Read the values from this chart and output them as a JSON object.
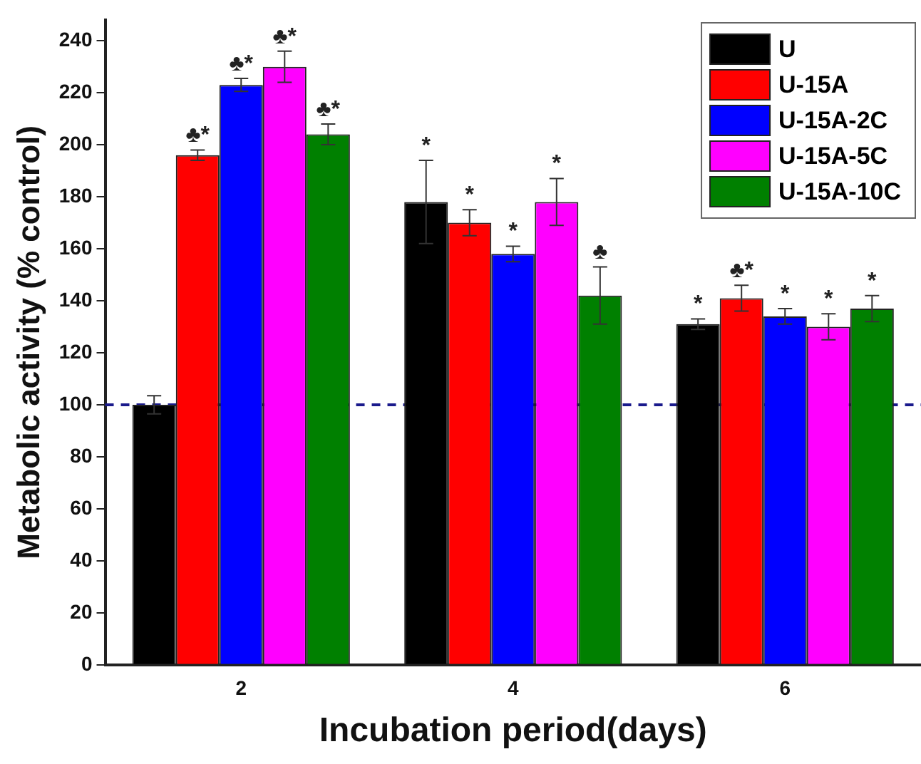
{
  "chart_data": {
    "type": "bar",
    "xlabel": "Incubation period(days)",
    "ylabel": "Metabolic activity (% control)",
    "categories": [
      "2",
      "4",
      "6"
    ],
    "series": [
      {
        "name": "U",
        "color": "#000000",
        "values": [
          100,
          178,
          131
        ],
        "errors": [
          3.5,
          16,
          2
        ],
        "value_labels": [
          null,
          "*",
          "*"
        ]
      },
      {
        "name": "U-15A",
        "color": "#ff0000",
        "values": [
          196,
          170,
          141
        ],
        "errors": [
          2,
          5,
          5
        ],
        "value_labels": [
          "♣*",
          "*",
          "♣*"
        ]
      },
      {
        "name": "U-15A-2C",
        "color": "#0000ff",
        "values": [
          223,
          158,
          134
        ],
        "errors": [
          2.5,
          3,
          3
        ],
        "value_labels": [
          "♣*",
          "*",
          "*"
        ]
      },
      {
        "name": "U-15A-5C",
        "color": "#ff00ff",
        "values": [
          230,
          178,
          130
        ],
        "errors": [
          6,
          9,
          5
        ],
        "value_labels": [
          "♣*",
          "*",
          "*"
        ]
      },
      {
        "name": "U-15A-10C",
        "color": "#008000",
        "values": [
          204,
          142,
          137
        ],
        "errors": [
          4,
          11,
          5
        ],
        "value_labels": [
          "♣*",
          "♣",
          "*"
        ]
      }
    ],
    "ylim": [
      0,
      248
    ],
    "yticks": [
      0,
      20,
      40,
      60,
      80,
      100,
      120,
      140,
      160,
      180,
      200,
      220,
      240
    ],
    "ref_lines": [
      {
        "axis": "y",
        "value": 100,
        "color": "#1a1a8c",
        "line_style": "dashed"
      }
    ],
    "grid": false,
    "legend": "top right"
  }
}
